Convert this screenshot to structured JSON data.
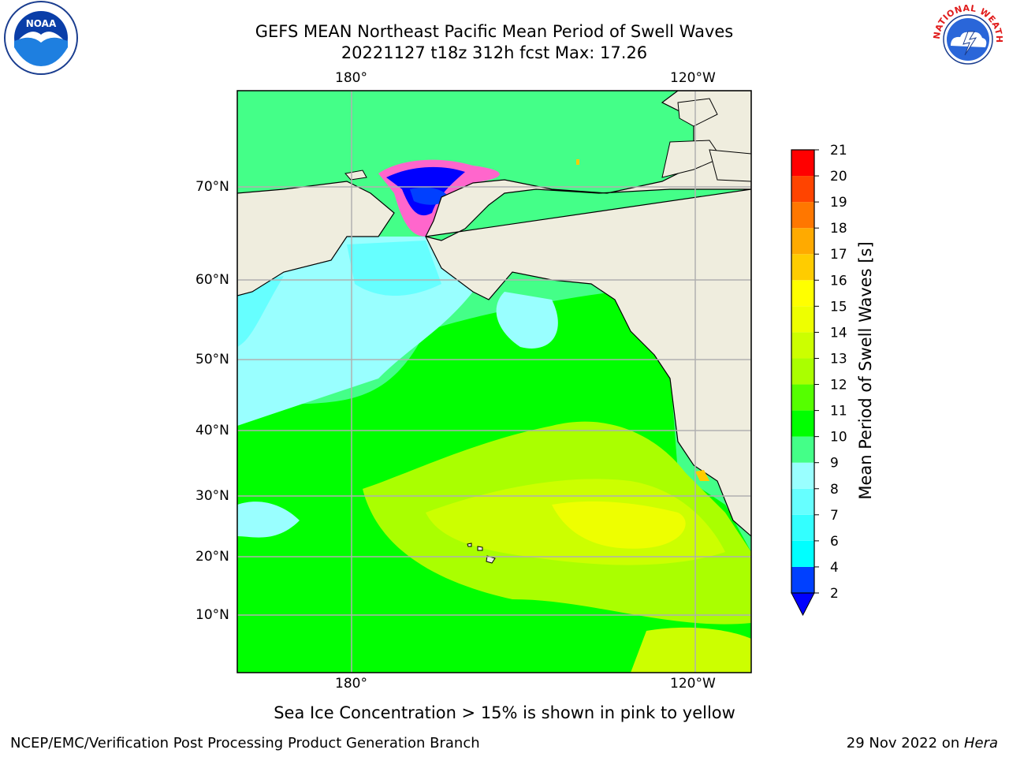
{
  "title": {
    "line1": "GEFS MEAN Northeast Pacific Mean Period of Swell Waves",
    "line2": "20221127 t18z 312h fcst   Max: 17.26"
  },
  "logos": {
    "left": {
      "icon": "noaa-logo-icon",
      "text": "NOAA"
    },
    "right": {
      "icon": "nws-logo-icon",
      "text": "NATIONAL WEATHER SERVICE"
    }
  },
  "map": {
    "lon_labels_top": [
      "180°",
      "120°W"
    ],
    "lon_labels_bottom": [
      "180°",
      "120°W"
    ],
    "lat_labels": [
      "70°N",
      "60°N",
      "50°N",
      "40°N",
      "30°N",
      "20°N",
      "10°N"
    ]
  },
  "colorbar": {
    "title": "Mean Period of Swell Waves [s]",
    "ticks": [
      "2",
      "4",
      "6",
      "7",
      "8",
      "9",
      "10",
      "11",
      "12",
      "13",
      "14",
      "15",
      "16",
      "17",
      "18",
      "19",
      "20",
      "21"
    ],
    "colors": [
      "#0040ff",
      "#00ffff",
      "#33ffff",
      "#66ffff",
      "#99ffff",
      "#44ff88",
      "#00ff00",
      "#55ff00",
      "#aaff00",
      "#ccff00",
      "#eeff00",
      "#ffff00",
      "#ffcc00",
      "#ffaa00",
      "#ff7700",
      "#ff4400",
      "#ff0000"
    ],
    "under_color": "#0000ff"
  },
  "caption": "Sea Ice Concentration > 15% is shown in pink to yellow",
  "footer": {
    "left": "NCEP/EMC/Verification Post Processing Product Generation Branch",
    "right_prefix": "29 Nov 2022 on ",
    "right_italic": "Hera"
  }
}
